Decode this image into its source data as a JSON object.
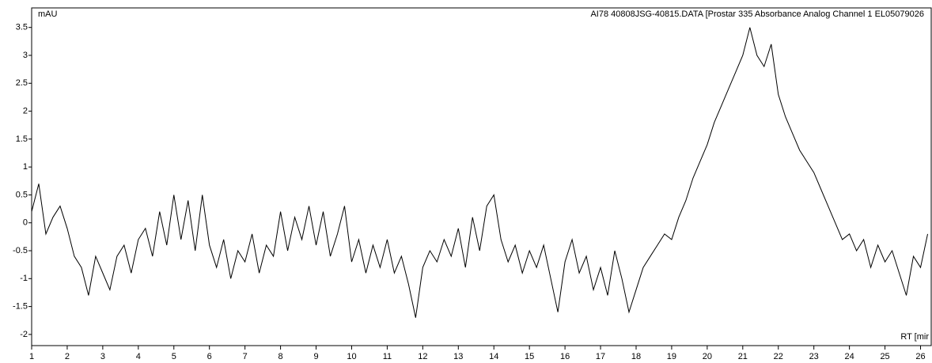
{
  "chart_data": {
    "type": "line",
    "title": "AI78 40808JSG-40815.DATA [Prostar 335 Absorbance Analog Channel 1 EL05079026",
    "y_label": "mAU",
    "x_label": "RT [mir",
    "color": "#000000",
    "xlim": [
      1,
      26.3
    ],
    "ylim": [
      -2.2,
      3.85
    ],
    "xticks": [
      1,
      2,
      3,
      4,
      5,
      6,
      7,
      8,
      9,
      10,
      11,
      12,
      13,
      14,
      15,
      16,
      17,
      18,
      19,
      20,
      21,
      22,
      23,
      24,
      25,
      26
    ],
    "yticks": [
      -2,
      -1.5,
      -1,
      -0.5,
      0,
      0.5,
      1,
      1.5,
      2,
      2.5,
      3,
      3.5
    ],
    "x": [
      1.0,
      1.2,
      1.4,
      1.6,
      1.8,
      2.0,
      2.2,
      2.4,
      2.6,
      2.8,
      3.0,
      3.2,
      3.4,
      3.6,
      3.8,
      4.0,
      4.2,
      4.4,
      4.6,
      4.8,
      5.0,
      5.2,
      5.4,
      5.6,
      5.8,
      6.0,
      6.2,
      6.4,
      6.6,
      6.8,
      7.0,
      7.2,
      7.4,
      7.6,
      7.8,
      8.0,
      8.2,
      8.4,
      8.6,
      8.8,
      9.0,
      9.2,
      9.4,
      9.6,
      9.8,
      10.0,
      10.2,
      10.4,
      10.6,
      10.8,
      11.0,
      11.2,
      11.4,
      11.6,
      11.8,
      12.0,
      12.2,
      12.4,
      12.6,
      12.8,
      13.0,
      13.2,
      13.4,
      13.6,
      13.8,
      14.0,
      14.2,
      14.4,
      14.6,
      14.8,
      15.0,
      15.2,
      15.4,
      15.6,
      15.8,
      16.0,
      16.2,
      16.4,
      16.6,
      16.8,
      17.0,
      17.2,
      17.4,
      17.6,
      17.8,
      18.0,
      18.2,
      18.4,
      18.6,
      18.8,
      19.0,
      19.2,
      19.4,
      19.6,
      19.8,
      20.0,
      20.2,
      20.4,
      20.6,
      20.8,
      21.0,
      21.2,
      21.4,
      21.6,
      21.8,
      22.0,
      22.2,
      22.4,
      22.6,
      22.8,
      23.0,
      23.2,
      23.4,
      23.6,
      23.8,
      24.0,
      24.2,
      24.4,
      24.6,
      24.8,
      25.0,
      25.2,
      25.4,
      25.6,
      25.8,
      26.0,
      26.2
    ],
    "values": [
      0.2,
      0.7,
      -0.2,
      0.1,
      0.3,
      -0.1,
      -0.6,
      -0.8,
      -1.3,
      -0.6,
      -0.9,
      -1.2,
      -0.6,
      -0.4,
      -0.9,
      -0.3,
      -0.1,
      -0.6,
      0.2,
      -0.4,
      0.5,
      -0.3,
      0.4,
      -0.5,
      0.5,
      -0.4,
      -0.8,
      -0.3,
      -1.0,
      -0.5,
      -0.7,
      -0.2,
      -0.9,
      -0.4,
      -0.6,
      0.2,
      -0.5,
      0.1,
      -0.3,
      0.3,
      -0.4,
      0.2,
      -0.6,
      -0.2,
      0.3,
      -0.7,
      -0.3,
      -0.9,
      -0.4,
      -0.8,
      -0.3,
      -0.9,
      -0.6,
      -1.1,
      -1.7,
      -0.8,
      -0.5,
      -0.7,
      -0.3,
      -0.6,
      -0.1,
      -0.8,
      0.1,
      -0.5,
      0.3,
      0.5,
      -0.3,
      -0.7,
      -0.4,
      -0.9,
      -0.5,
      -0.8,
      -0.4,
      -1.0,
      -1.6,
      -0.7,
      -0.3,
      -0.9,
      -0.6,
      -1.2,
      -0.8,
      -1.3,
      -0.5,
      -1.0,
      -1.6,
      -1.2,
      -0.8,
      -0.6,
      -0.4,
      -0.2,
      -0.3,
      0.1,
      0.4,
      0.8,
      1.1,
      1.4,
      1.8,
      2.1,
      2.4,
      2.7,
      3.0,
      3.5,
      3.0,
      2.8,
      3.2,
      2.3,
      1.9,
      1.6,
      1.3,
      1.1,
      0.9,
      0.6,
      0.3,
      0.0,
      -0.3,
      -0.2,
      -0.5,
      -0.3,
      -0.8,
      -0.4,
      -0.7,
      -0.5,
      -0.9,
      -1.3,
      -0.6,
      -0.8,
      -0.2
    ]
  }
}
